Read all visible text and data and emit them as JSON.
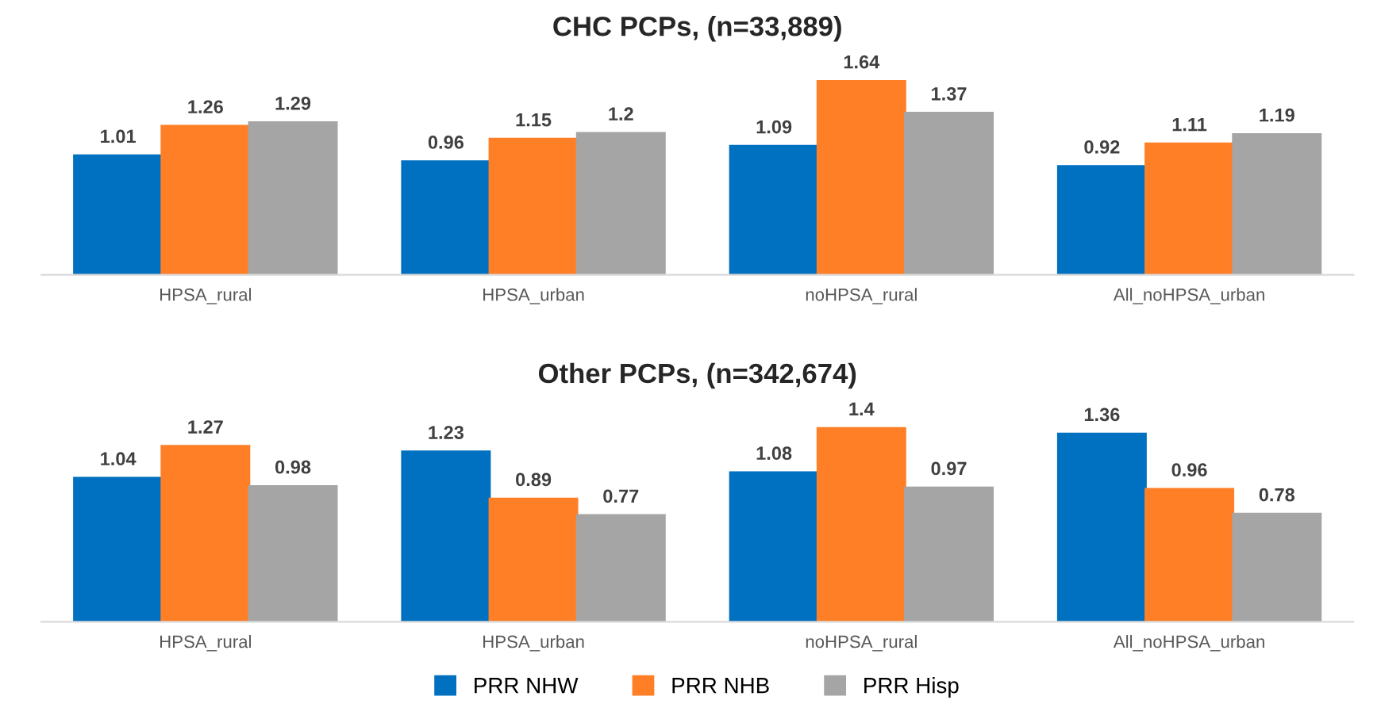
{
  "chart_data": [
    {
      "type": "bar",
      "title": "CHC PCPs, (n=33,889)",
      "categories": [
        "HPSA_rural",
        "HPSA_urban",
        "noHPSA_rural",
        "All_noHPSA_urban"
      ],
      "data_labels": true,
      "grid": false,
      "series": [
        {
          "color": "#0070c0",
          "values": [
            1.01,
            0.96,
            1.09,
            0.92
          ]
        },
        {
          "color": "#ff7f27",
          "values": [
            1.26,
            1.15,
            1.64,
            1.11
          ]
        },
        {
          "color": "#a5a5a5",
          "values": [
            1.29,
            1.2,
            1.37,
            1.19
          ]
        }
      ]
    },
    {
      "type": "bar",
      "title": "Other PCPs, (n=342,674)",
      "categories": [
        "HPSA_rural",
        "HPSA_urban",
        "noHPSA_rural",
        "All_noHPSA_urban"
      ],
      "data_labels": true,
      "grid": false,
      "legend": "bottom",
      "series": [
        {
          "name": "PRR NHW",
          "color": "#0070c0",
          "values": [
            1.04,
            1.23,
            1.08,
            1.36
          ]
        },
        {
          "name": "PRR NHB",
          "color": "#ff7f27",
          "values": [
            1.27,
            0.89,
            1.4,
            0.96
          ]
        },
        {
          "name": "PRR Hisp",
          "color": "#a5a5a5",
          "values": [
            0.98,
            0.77,
            0.97,
            0.78
          ]
        }
      ]
    }
  ]
}
